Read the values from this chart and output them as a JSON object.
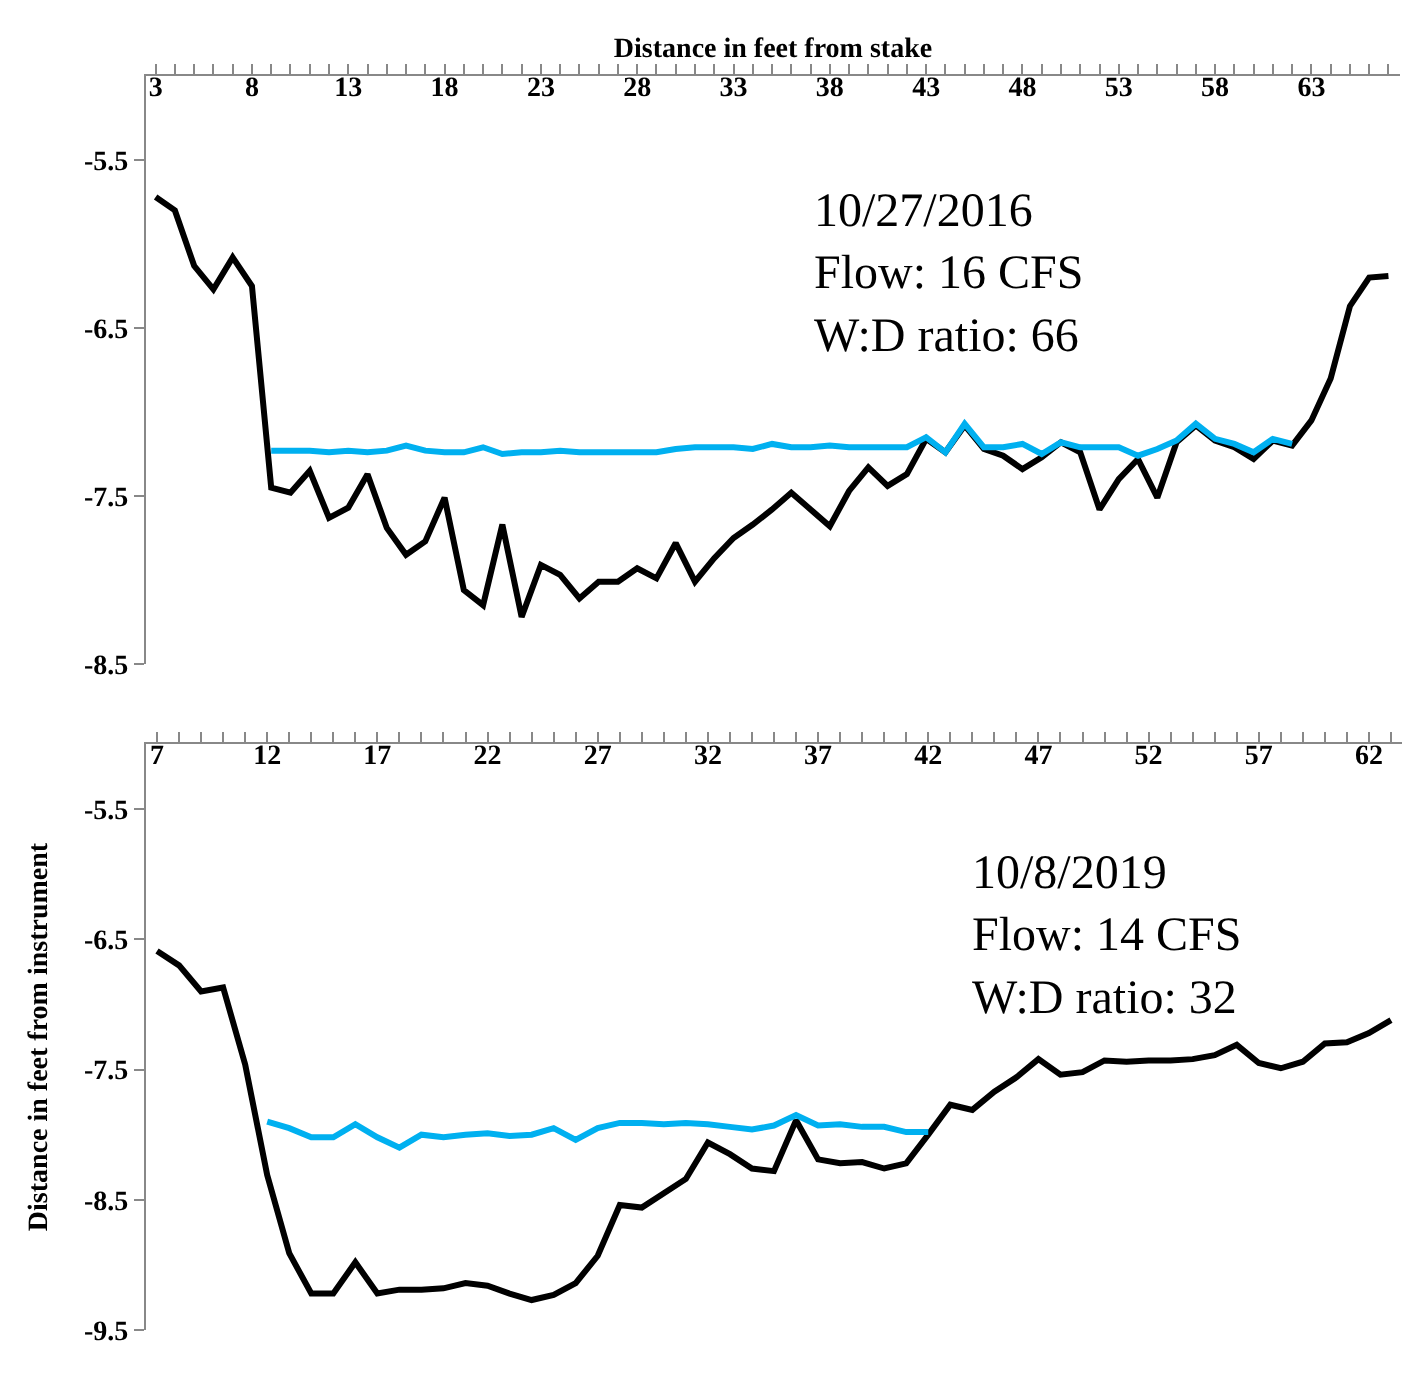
{
  "chart_data": [
    {
      "type": "line",
      "xlabel": "Distance in feet from stake",
      "annotations": [
        "10/27/2016\nFlow: 16 CFS\nW:D ratio: 66"
      ],
      "x": [
        3,
        4,
        5,
        6,
        7,
        8,
        9,
        10,
        11,
        12,
        13,
        14,
        15,
        16,
        17,
        18,
        19,
        20,
        21,
        22,
        23,
        24,
        25,
        26,
        27,
        28,
        29,
        30,
        31,
        32,
        33,
        34,
        35,
        36,
        37,
        38,
        39,
        40,
        41,
        42,
        43,
        44,
        45,
        46,
        47,
        48,
        49,
        50,
        51,
        52,
        53,
        54,
        55,
        56,
        57,
        58,
        59,
        60,
        61,
        62,
        63,
        64,
        65,
        66,
        67
      ],
      "series": [
        {
          "color": "#000000",
          "values": [
            -5.72,
            -5.8,
            -6.13,
            -6.27,
            -6.08,
            -6.25,
            -7.45,
            -7.48,
            -7.35,
            -7.63,
            -7.57,
            -7.37,
            -7.69,
            -7.85,
            -7.77,
            -7.51,
            -8.06,
            -8.15,
            -7.67,
            -8.22,
            -7.91,
            -7.97,
            -8.11,
            -8.01,
            -8.01,
            -7.93,
            -7.99,
            -7.78,
            -8.01,
            -7.87,
            -7.75,
            -7.67,
            -7.58,
            -7.48,
            -7.58,
            -7.68,
            -7.47,
            -7.33,
            -7.44,
            -7.37,
            -7.16,
            -7.24,
            -7.08,
            -7.22,
            -7.26,
            -7.34,
            -7.27,
            -7.18,
            -7.24,
            -7.58,
            -7.4,
            -7.28,
            -7.51,
            -7.18,
            -7.08,
            -7.17,
            -7.21,
            -7.28,
            -7.17,
            -7.2,
            -7.05,
            -6.8,
            -6.37,
            -6.2,
            -6.19
          ]
        },
        {
          "color": "#00b0f0",
          "x": [
            9,
            10,
            11,
            12,
            13,
            14,
            15,
            16,
            17,
            18,
            19,
            20,
            21,
            22,
            23,
            24,
            25,
            26,
            27,
            28,
            29,
            30,
            31,
            32,
            33,
            34,
            35,
            36,
            37,
            38,
            39,
            40,
            41,
            42,
            43,
            44,
            45,
            46,
            47,
            48,
            49,
            50,
            51,
            52,
            53,
            54,
            55,
            56,
            57,
            58,
            59,
            60,
            61,
            62
          ],
          "values": [
            -7.23,
            -7.23,
            -7.23,
            -7.24,
            -7.23,
            -7.24,
            -7.23,
            -7.2,
            -7.23,
            -7.24,
            -7.24,
            -7.21,
            -7.25,
            -7.24,
            -7.24,
            -7.23,
            -7.24,
            -7.24,
            -7.24,
            -7.24,
            -7.24,
            -7.22,
            -7.21,
            -7.21,
            -7.21,
            -7.22,
            -7.19,
            -7.21,
            -7.21,
            -7.2,
            -7.21,
            -7.21,
            -7.21,
            -7.21,
            -7.15,
            -7.24,
            -7.07,
            -7.21,
            -7.21,
            -7.19,
            -7.25,
            -7.18,
            -7.21,
            -7.21,
            -7.21,
            -7.26,
            -7.22,
            -7.17,
            -7.07,
            -7.16,
            -7.19,
            -7.24,
            -7.16,
            -7.19
          ]
        }
      ],
      "xlim": [
        2.5,
        67.6
      ],
      "xticks": [
        3,
        {
          "value": 4,
          "label": null
        },
        {
          "value": 5,
          "label": null
        },
        {
          "value": 6,
          "label": null
        },
        {
          "value": 7,
          "label": null
        },
        8,
        {
          "value": 9,
          "label": null
        },
        {
          "value": 10,
          "label": null
        },
        {
          "value": 11,
          "label": null
        },
        {
          "value": 12,
          "label": null
        },
        13,
        {
          "value": 14,
          "label": null
        },
        {
          "value": 15,
          "label": null
        },
        {
          "value": 16,
          "label": null
        },
        {
          "value": 17,
          "label": null
        },
        18,
        {
          "value": 19,
          "label": null
        },
        {
          "value": 20,
          "label": null
        },
        {
          "value": 21,
          "label": null
        },
        {
          "value": 22,
          "label": null
        },
        23,
        {
          "value": 24,
          "label": null
        },
        {
          "value": 25,
          "label": null
        },
        {
          "value": 26,
          "label": null
        },
        {
          "value": 27,
          "label": null
        },
        28,
        {
          "value": 29,
          "label": null
        },
        {
          "value": 30,
          "label": null
        },
        {
          "value": 31,
          "label": null
        },
        {
          "value": 32,
          "label": null
        },
        33,
        {
          "value": 34,
          "label": null
        },
        {
          "value": 35,
          "label": null
        },
        {
          "value": 36,
          "label": null
        },
        {
          "value": 37,
          "label": null
        },
        38,
        {
          "value": 39,
          "label": null
        },
        {
          "value": 40,
          "label": null
        },
        {
          "value": 41,
          "label": null
        },
        {
          "value": 42,
          "label": null
        },
        43,
        {
          "value": 44,
          "label": null
        },
        {
          "value": 45,
          "label": null
        },
        {
          "value": 46,
          "label": null
        },
        {
          "value": 47,
          "label": null
        },
        48,
        {
          "value": 49,
          "label": null
        },
        {
          "value": 50,
          "label": null
        },
        {
          "value": 51,
          "label": null
        },
        {
          "value": 52,
          "label": null
        },
        53,
        {
          "value": 54,
          "label": null
        },
        {
          "value": 55,
          "label": null
        },
        {
          "value": 56,
          "label": null
        },
        {
          "value": 57,
          "label": null
        },
        58,
        {
          "value": 59,
          "label": null
        },
        {
          "value": 60,
          "label": null
        },
        {
          "value": 61,
          "label": null
        },
        {
          "value": 62,
          "label": null
        },
        63,
        {
          "value": 64,
          "label": null
        },
        {
          "value": 65,
          "label": null
        },
        {
          "value": 66,
          "label": null
        },
        {
          "value": 67,
          "label": null
        }
      ],
      "ylim": [
        -8.5,
        -5.0
      ],
      "yticks": [
        -5.5,
        -6.5,
        -7.5,
        -8.5
      ],
      "grid": false,
      "marker": "none",
      "line_style": "solid"
    },
    {
      "type": "line",
      "ylabel": "Distance in feet from instrument",
      "annotations": [
        "10/8/2019\nFlow: 14 CFS\nW:D ratio: 32"
      ],
      "x": [
        7,
        8,
        9,
        10,
        11,
        12,
        13,
        14,
        15,
        16,
        17,
        18,
        19,
        20,
        21,
        22,
        23,
        24,
        25,
        26,
        27,
        28,
        29,
        30,
        31,
        32,
        33,
        34,
        35,
        36,
        37,
        38,
        39,
        40,
        41,
        42,
        43,
        44,
        45,
        46,
        47,
        48,
        49,
        50,
        51,
        52,
        53,
        54,
        55,
        56,
        57,
        58,
        59,
        60,
        61,
        62,
        63
      ],
      "series": [
        {
          "color": "#000000",
          "values": [
            -6.59,
            -6.7,
            -6.9,
            -6.87,
            -7.46,
            -8.31,
            -8.91,
            -9.22,
            -9.22,
            -8.98,
            -9.22,
            -9.19,
            -9.19,
            -9.18,
            -9.14,
            -9.16,
            -9.22,
            -9.27,
            -9.23,
            -9.14,
            -8.93,
            -8.54,
            -8.56,
            -8.45,
            -8.34,
            -8.06,
            -8.15,
            -8.26,
            -8.28,
            -7.89,
            -8.19,
            -8.22,
            -8.21,
            -8.26,
            -8.22,
            -8.0,
            -7.77,
            -7.81,
            -7.67,
            -7.56,
            -7.42,
            -7.54,
            -7.52,
            -7.43,
            -7.44,
            -7.43,
            -7.43,
            -7.42,
            -7.39,
            -7.31,
            -7.45,
            -7.49,
            -7.44,
            -7.3,
            -7.29,
            -7.22,
            -7.12
          ]
        },
        {
          "color": "#00b0f0",
          "x": [
            12,
            13,
            14,
            15,
            16,
            17,
            18,
            19,
            20,
            21,
            22,
            23,
            24,
            25,
            26,
            27,
            28,
            29,
            30,
            31,
            32,
            33,
            34,
            35,
            36,
            37,
            38,
            39,
            40,
            41,
            42
          ],
          "values": [
            -7.9,
            -7.95,
            -8.02,
            -8.02,
            -7.92,
            -8.02,
            -8.1,
            -8.0,
            -8.02,
            -8.0,
            -7.99,
            -8.01,
            -8.0,
            -7.95,
            -8.04,
            -7.95,
            -7.91,
            -7.91,
            -7.92,
            -7.91,
            -7.92,
            -7.94,
            -7.96,
            -7.93,
            -7.85,
            -7.93,
            -7.92,
            -7.94,
            -7.94,
            -7.98,
            -7.98
          ]
        }
      ],
      "xlim": [
        6.5,
        63.5
      ],
      "xticks": [
        7,
        {
          "value": 8,
          "label": null
        },
        {
          "value": 9,
          "label": null
        },
        {
          "value": 10,
          "label": null
        },
        {
          "value": 11,
          "label": null
        },
        12,
        {
          "value": 13,
          "label": null
        },
        {
          "value": 14,
          "label": null
        },
        {
          "value": 15,
          "label": null
        },
        {
          "value": 16,
          "label": null
        },
        17,
        {
          "value": 18,
          "label": null
        },
        {
          "value": 19,
          "label": null
        },
        {
          "value": 20,
          "label": null
        },
        {
          "value": 21,
          "label": null
        },
        22,
        {
          "value": 23,
          "label": null
        },
        {
          "value": 24,
          "label": null
        },
        {
          "value": 25,
          "label": null
        },
        {
          "value": 26,
          "label": null
        },
        27,
        {
          "value": 28,
          "label": null
        },
        {
          "value": 29,
          "label": null
        },
        {
          "value": 30,
          "label": null
        },
        {
          "value": 31,
          "label": null
        },
        32,
        {
          "value": 33,
          "label": null
        },
        {
          "value": 34,
          "label": null
        },
        {
          "value": 35,
          "label": null
        },
        {
          "value": 36,
          "label": null
        },
        37,
        {
          "value": 38,
          "label": null
        },
        {
          "value": 39,
          "label": null
        },
        {
          "value": 40,
          "label": null
        },
        {
          "value": 41,
          "label": null
        },
        42,
        {
          "value": 43,
          "label": null
        },
        {
          "value": 44,
          "label": null
        },
        {
          "value": 45,
          "label": null
        },
        {
          "value": 46,
          "label": null
        },
        47,
        {
          "value": 48,
          "label": null
        },
        {
          "value": 49,
          "label": null
        },
        {
          "value": 50,
          "label": null
        },
        {
          "value": 51,
          "label": null
        },
        52,
        {
          "value": 53,
          "label": null
        },
        {
          "value": 54,
          "label": null
        },
        {
          "value": 55,
          "label": null
        },
        {
          "value": 56,
          "label": null
        },
        57,
        {
          "value": 58,
          "label": null
        },
        {
          "value": 59,
          "label": null
        },
        {
          "value": 60,
          "label": null
        },
        {
          "value": 61,
          "label": null
        },
        62,
        {
          "value": 63,
          "label": null
        }
      ],
      "ylim": [
        -9.5,
        -5.0
      ],
      "yticks": [
        -5.5,
        -6.5,
        -7.5,
        -8.5,
        -9.5
      ],
      "grid": false,
      "marker": "none",
      "line_style": "solid"
    }
  ]
}
